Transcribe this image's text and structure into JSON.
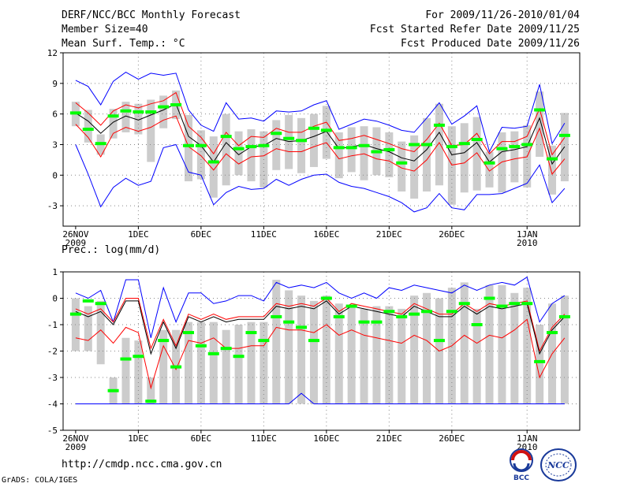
{
  "header": {
    "title": "DERF/NCC/BCC Monthly Forecast",
    "member_size": "Member Size=40",
    "variable1": "Mean Surf. Temp.: °C",
    "for_range": "For 2009/11/26-2010/01/04",
    "fcst_started": "Fcst Started Refer Date 2009/11/25",
    "fcst_produced": "Fcst Produced Date 2009/11/26"
  },
  "panel2_label": "Prec.: log(mm/d)",
  "footer": {
    "url": "http://cmdp.ncc.cma.gov.cn",
    "grads": "GrADS: COLA/IGES"
  },
  "logos": {
    "bcc": "BCC",
    "ncc": "NCC"
  },
  "colors": {
    "box": "#cccccc",
    "median": "#00ff00",
    "mean": "#000000",
    "band": "#ff0000",
    "extreme": "#0000ff",
    "grid": "#888888"
  },
  "chart_data": [
    {
      "type": "box",
      "title": "Mean Surf. Temp.: °C",
      "ylim": [
        -5,
        12
      ],
      "yticks": [
        -3,
        0,
        3,
        6,
        9,
        12
      ],
      "xticks": [
        {
          "day": 0,
          "label": "26NOV",
          "sub": "2009"
        },
        {
          "day": 5,
          "label": "1DEC"
        },
        {
          "day": 10,
          "label": "6DEC"
        },
        {
          "day": 15,
          "label": "11DEC"
        },
        {
          "day": 20,
          "label": "16DEC"
        },
        {
          "day": 25,
          "label": "21DEC"
        },
        {
          "day": 30,
          "label": "26DEC"
        },
        {
          "day": 36,
          "label": "1JAN",
          "sub": "2010"
        }
      ],
      "series": [
        {
          "name": "mean",
          "values": [
            6.1,
            5.3,
            4.1,
            5.2,
            5.8,
            5.4,
            5.9,
            6.4,
            7.0,
            3.8,
            2.9,
            1.3,
            3.2,
            2.0,
            2.8,
            2.9,
            3.6,
            3.3,
            3.4,
            3.8,
            4.3,
            2.6,
            2.8,
            3.0,
            2.6,
            2.3,
            1.7,
            1.4,
            2.5,
            4.2,
            2.0,
            2.2,
            3.2,
            1.3,
            2.3,
            2.5,
            2.8,
            5.6,
            1.1,
            2.8
          ]
        },
        {
          "name": "mean_plus",
          "values": [
            7.1,
            6.1,
            4.9,
            6.3,
            6.9,
            6.6,
            7.0,
            7.3,
            8.1,
            4.8,
            3.7,
            2.1,
            4.2,
            2.9,
            3.8,
            3.7,
            4.6,
            4.2,
            4.2,
            4.8,
            5.2,
            3.4,
            3.6,
            3.9,
            3.5,
            3.1,
            2.6,
            2.3,
            3.5,
            5.1,
            2.9,
            3.0,
            4.1,
            2.1,
            3.3,
            3.3,
            3.8,
            6.5,
            2.0,
            3.7
          ]
        },
        {
          "name": "mean_minus",
          "values": [
            5.0,
            3.7,
            1.8,
            4.1,
            4.7,
            4.3,
            4.7,
            5.4,
            5.8,
            2.8,
            1.9,
            0.5,
            2.1,
            1.1,
            1.8,
            1.9,
            2.6,
            2.3,
            2.3,
            2.8,
            3.2,
            1.6,
            1.9,
            2.1,
            1.6,
            1.4,
            0.7,
            0.4,
            1.5,
            3.2,
            1.0,
            1.2,
            2.2,
            0.4,
            1.3,
            1.6,
            1.8,
            4.6,
            0.1,
            1.6
          ]
        },
        {
          "name": "max",
          "values": [
            9.3,
            8.7,
            6.9,
            9.2,
            10.1,
            9.4,
            10.0,
            9.8,
            10.0,
            6.4,
            4.9,
            4.3,
            7.1,
            5.5,
            5.6,
            5.3,
            6.3,
            6.2,
            6.3,
            6.9,
            7.3,
            4.5,
            5.0,
            5.5,
            5.3,
            4.9,
            4.4,
            4.2,
            5.6,
            7.1,
            5.0,
            5.8,
            6.8,
            2.3,
            4.7,
            4.6,
            4.8,
            8.9,
            3.1,
            5.1
          ]
        },
        {
          "name": "min",
          "values": [
            3.0,
            0.1,
            -3.1,
            -1.2,
            -0.3,
            -1.0,
            -0.6,
            2.7,
            3.0,
            0.3,
            0.0,
            -2.9,
            -1.7,
            -1.1,
            -1.4,
            -1.3,
            -0.4,
            -1.0,
            -0.4,
            0.0,
            0.1,
            -0.7,
            -1.1,
            -1.3,
            -1.7,
            -2.1,
            -2.7,
            -3.6,
            -3.2,
            -1.8,
            -3.2,
            -3.4,
            -1.9,
            -1.9,
            -1.8,
            -1.3,
            -0.8,
            1.0,
            -2.7,
            -1.3
          ]
        },
        {
          "name": "median",
          "values": [
            6.1,
            4.5,
            3.1,
            5.8,
            6.3,
            6.2,
            6.2,
            6.7,
            6.9,
            2.9,
            2.9,
            1.3,
            3.8,
            2.6,
            2.8,
            2.9,
            4.1,
            3.6,
            3.4,
            4.6,
            4.4,
            2.7,
            2.7,
            2.9,
            2.3,
            2.5,
            1.2,
            3.0,
            3.0,
            4.9,
            2.8,
            3.1,
            3.5,
            1.2,
            2.6,
            2.8,
            3.0,
            6.4,
            1.6,
            3.9
          ]
        },
        {
          "name": "box_q75",
          "values": [
            7.2,
            6.4,
            4.0,
            6.5,
            7.2,
            7.0,
            7.4,
            7.8,
            8.3,
            5.9,
            4.4,
            3.8,
            6.0,
            4.3,
            4.5,
            4.3,
            5.4,
            5.9,
            5.6,
            6.0,
            6.8,
            4.2,
            4.7,
            4.8,
            4.7,
            4.2,
            3.3,
            3.9,
            5.6,
            7.0,
            4.8,
            5.1,
            5.7,
            2.3,
            4.2,
            4.3,
            4.9,
            8.2,
            2.9,
            6.1
          ]
        },
        {
          "name": "box_q25",
          "values": [
            4.8,
            3.2,
            2.0,
            3.6,
            4.2,
            4.0,
            1.3,
            4.6,
            5.5,
            -0.6,
            -0.4,
            -2.2,
            -1.0,
            0.0,
            -0.6,
            -1.2,
            0.5,
            0.6,
            0.2,
            0.8,
            1.6,
            -0.3,
            0.3,
            -0.5,
            0.0,
            -0.2,
            -1.6,
            -2.3,
            -1.6,
            -1.0,
            -2.9,
            -1.7,
            -1.5,
            -1.2,
            -1.7,
            -0.7,
            -1.2,
            1.8,
            -1.9,
            -0.6
          ]
        }
      ]
    },
    {
      "type": "box",
      "title": "Prec.: log(mm/d)",
      "ylim": [
        -5,
        1
      ],
      "yticks": [
        -5,
        -4,
        -3,
        -2,
        -1,
        0,
        1
      ],
      "xticks": [
        {
          "day": 0,
          "label": "26NOV",
          "sub": "2009"
        },
        {
          "day": 5,
          "label": "1DEC"
        },
        {
          "day": 10,
          "label": "6DEC"
        },
        {
          "day": 15,
          "label": "11DEC"
        },
        {
          "day": 20,
          "label": "16DEC"
        },
        {
          "day": 25,
          "label": "21DEC"
        },
        {
          "day": 30,
          "label": "26DEC"
        },
        {
          "day": 36,
          "label": "1JAN",
          "sub": "2010"
        }
      ],
      "series": [
        {
          "name": "mean",
          "values": [
            -0.5,
            -0.7,
            -0.5,
            -1.0,
            -0.1,
            -0.1,
            -2.1,
            -0.9,
            -1.9,
            -0.7,
            -0.9,
            -0.7,
            -0.9,
            -0.8,
            -0.8,
            -0.8,
            -0.3,
            -0.4,
            -0.3,
            -0.4,
            -0.1,
            -0.6,
            -0.3,
            -0.4,
            -0.5,
            -0.6,
            -0.7,
            -0.3,
            -0.5,
            -0.7,
            -0.7,
            -0.3,
            -0.6,
            -0.3,
            -0.4,
            -0.3,
            -0.2,
            -2.1,
            -1.2,
            -0.7
          ]
        },
        {
          "name": "mean_plus",
          "values": [
            -0.4,
            -0.6,
            -0.4,
            -0.9,
            0.0,
            0.0,
            -1.9,
            -0.8,
            -1.8,
            -0.6,
            -0.8,
            -0.6,
            -0.8,
            -0.7,
            -0.7,
            -0.7,
            -0.2,
            -0.3,
            -0.2,
            -0.3,
            0.0,
            -0.5,
            -0.2,
            -0.3,
            -0.4,
            -0.5,
            -0.6,
            -0.2,
            -0.4,
            -0.6,
            -0.6,
            -0.2,
            -0.5,
            -0.2,
            -0.3,
            -0.2,
            -0.1,
            -2.0,
            -1.1,
            -0.6
          ]
        },
        {
          "name": "mean_minus",
          "values": [
            -1.5,
            -1.6,
            -1.2,
            -1.7,
            -1.1,
            -1.3,
            -3.4,
            -1.8,
            -2.7,
            -1.6,
            -1.7,
            -1.5,
            -1.9,
            -1.9,
            -1.8,
            -1.8,
            -1.1,
            -1.2,
            -1.2,
            -1.3,
            -1.0,
            -1.4,
            -1.2,
            -1.4,
            -1.5,
            -1.6,
            -1.7,
            -1.4,
            -1.6,
            -2.0,
            -1.8,
            -1.4,
            -1.7,
            -1.4,
            -1.5,
            -1.2,
            -0.8,
            -3.0,
            -2.1,
            -1.5
          ]
        },
        {
          "name": "max",
          "values": [
            0.2,
            0.0,
            0.3,
            -0.9,
            0.7,
            0.7,
            -1.5,
            0.4,
            -0.9,
            0.2,
            0.2,
            -0.2,
            -0.1,
            0.1,
            0.1,
            -0.1,
            0.6,
            0.4,
            0.5,
            0.4,
            0.6,
            0.2,
            0.0,
            0.2,
            0.0,
            0.4,
            0.3,
            0.5,
            0.4,
            0.3,
            0.2,
            0.5,
            0.3,
            0.5,
            0.6,
            0.5,
            0.8,
            -0.9,
            -0.2,
            0.1
          ]
        },
        {
          "name": "min",
          "values": [
            -4.0,
            -4.0,
            -4.0,
            -4.0,
            -4.0,
            -4.0,
            -4.0,
            -4.0,
            -4.0,
            -4.0,
            -4.0,
            -4.0,
            -4.0,
            -4.0,
            -4.0,
            -4.0,
            -4.0,
            -4.0,
            -3.6,
            -4.0,
            -4.0,
            -4.0,
            -4.0,
            -4.0,
            -4.0,
            -4.0,
            -4.0,
            -4.0,
            -4.0,
            -4.0,
            -4.0,
            -4.0,
            -4.0,
            -4.0,
            -4.0,
            -4.0,
            -4.0,
            -4.0,
            -4.0,
            -4.0
          ]
        },
        {
          "name": "median",
          "values": [
            -0.6,
            -0.1,
            -0.2,
            -3.5,
            -2.3,
            -2.2,
            -3.9,
            -1.6,
            -2.6,
            -1.3,
            -1.8,
            -2.1,
            -1.9,
            -2.2,
            -1.3,
            -1.6,
            -0.7,
            -0.9,
            -1.1,
            -1.6,
            0.0,
            -0.7,
            -0.3,
            -0.9,
            -0.9,
            -0.5,
            -0.7,
            -0.6,
            -0.5,
            -1.6,
            -0.5,
            -0.2,
            -1.0,
            0.0,
            -0.3,
            -0.2,
            -0.2,
            -2.4,
            -1.3,
            -0.7
          ]
        },
        {
          "name": "box_q75",
          "values": [
            0.0,
            -0.3,
            -0.1,
            -3.0,
            -1.5,
            -1.6,
            -3.0,
            -1.2,
            -1.2,
            -0.9,
            -0.9,
            -0.9,
            -1.2,
            -1.0,
            -0.9,
            -0.9,
            0.7,
            0.3,
            0.1,
            -0.1,
            0.1,
            -0.2,
            -0.3,
            -0.4,
            -0.3,
            -0.3,
            -0.4,
            0.1,
            0.2,
            0.0,
            0.4,
            0.6,
            -0.4,
            0.5,
            0.5,
            0.2,
            0.4,
            -1.0,
            -0.2,
            0.1
          ]
        },
        {
          "name": "box_q25",
          "values": [
            -2.0,
            -2.0,
            -2.5,
            -4.0,
            -4.0,
            -4.0,
            -4.0,
            -4.0,
            -4.0,
            -4.0,
            -4.0,
            -4.0,
            -4.0,
            -4.0,
            -4.0,
            -4.0,
            -4.0,
            -4.0,
            -4.0,
            -4.0,
            -4.0,
            -4.0,
            -4.0,
            -4.0,
            -4.0,
            -4.0,
            -4.0,
            -4.0,
            -4.0,
            -4.0,
            -4.0,
            -4.0,
            -4.0,
            -4.0,
            -4.0,
            -4.0,
            -4.0,
            -4.0,
            -4.0,
            -4.0
          ]
        }
      ]
    }
  ]
}
